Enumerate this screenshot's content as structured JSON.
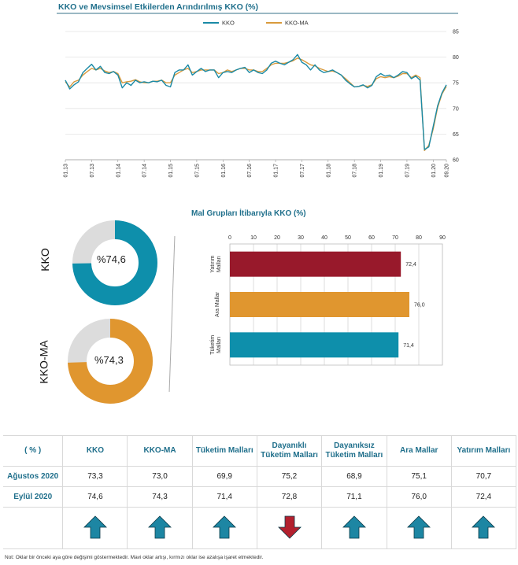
{
  "line_chart_title": "KKO ve Mevsimsel Etkilerden Arındırılmış KKO (%)",
  "bar_chart_title": "Mal Grupları İtibarıyla KKO (%)",
  "donuts": [
    {
      "label": "KKO",
      "value_text": "%74,6",
      "value": 74.6,
      "color": "#0e8fab"
    },
    {
      "label": "KKO-MA",
      "value_text": "%74,3",
      "value": 74.3,
      "color": "#e0962f"
    }
  ],
  "chart_data": [
    {
      "type": "line",
      "title": "KKO ve Mevsimsel Etkilerden Arındırılmış KKO (%)",
      "x_tick_labels": [
        "01.13",
        "07.13",
        "01.14",
        "07.14",
        "01.15",
        "07.15",
        "01.16",
        "07.16",
        "01.17",
        "07.17",
        "01.18",
        "07.18",
        "01.19",
        "07.19",
        "01.20",
        "09.20"
      ],
      "ylim": [
        60,
        85
      ],
      "yticks": [
        60,
        65,
        70,
        75,
        80,
        85
      ],
      "legend_position": "top-center",
      "series": [
        {
          "name": "KKO",
          "color": "#1a8aa6",
          "values": [
            75.5,
            73.8,
            74.6,
            75.2,
            77.0,
            77.8,
            78.6,
            77.5,
            78.2,
            77.0,
            76.8,
            77.2,
            76.5,
            74.0,
            75.0,
            74.5,
            75.5,
            75.0,
            75.2,
            75.0,
            75.3,
            75.2,
            75.5,
            74.5,
            74.2,
            77.0,
            77.5,
            77.5,
            78.5,
            76.5,
            77.2,
            77.8,
            77.2,
            77.5,
            77.5,
            76.0,
            77.0,
            77.2,
            77.0,
            77.5,
            77.8,
            78.0,
            77.0,
            77.5,
            77.0,
            76.8,
            77.5,
            78.8,
            79.2,
            78.8,
            78.5,
            79.0,
            79.5,
            80.5,
            79.0,
            78.5,
            77.5,
            78.5,
            77.5,
            77.0,
            77.2,
            77.5,
            77.0,
            76.5,
            75.5,
            74.8,
            74.2,
            74.3,
            74.6,
            74.0,
            74.5,
            76.2,
            76.8,
            76.3,
            76.5,
            76.0,
            76.5,
            77.2,
            77.0,
            75.8,
            76.3,
            75.5,
            62.0,
            62.5,
            66.5,
            70.5,
            73.0,
            74.6
          ]
        },
        {
          "name": "KKO-MA",
          "color": "#d99a3c",
          "values": [
            75.2,
            74.2,
            75.2,
            75.5,
            76.5,
            77.2,
            77.8,
            77.5,
            77.8,
            77.3,
            77.0,
            77.2,
            76.8,
            75.0,
            75.2,
            75.3,
            75.6,
            75.2,
            75.0,
            75.0,
            75.3,
            75.3,
            75.5,
            75.0,
            75.0,
            76.5,
            77.0,
            77.5,
            77.8,
            77.0,
            77.2,
            77.5,
            77.5,
            77.5,
            77.5,
            76.8,
            77.0,
            77.5,
            77.2,
            77.5,
            77.8,
            77.8,
            77.5,
            77.5,
            77.2,
            77.2,
            77.8,
            78.5,
            78.8,
            78.8,
            78.8,
            79.0,
            79.3,
            79.8,
            79.5,
            79.0,
            78.5,
            78.3,
            77.8,
            77.5,
            77.2,
            77.3,
            77.0,
            76.5,
            75.8,
            75.0,
            74.2,
            74.3,
            74.5,
            74.3,
            74.6,
            75.8,
            76.2,
            76.0,
            76.2,
            76.0,
            76.3,
            76.8,
            76.8,
            76.0,
            76.5,
            76.0,
            61.8,
            62.8,
            66.0,
            70.2,
            72.8,
            74.3
          ]
        }
      ]
    },
    {
      "type": "bar",
      "orientation": "horizontal",
      "title": "Mal Grupları İtibarıyla KKO (%)",
      "categories": [
        "Yatırım Malları",
        "Ara Mallar",
        "Tüketim Malları"
      ],
      "values": [
        72.4,
        76.0,
        71.4
      ],
      "value_labels": [
        "72,4",
        "76,0",
        "71,4"
      ],
      "colors": [
        "#98192b",
        "#e0962f",
        "#0e8fab"
      ],
      "xlim": [
        0,
        90
      ],
      "xticks": [
        0,
        10,
        20,
        30,
        40,
        50,
        60,
        70,
        80,
        90
      ]
    }
  ],
  "table": {
    "header": [
      "( % )",
      "KKO",
      "KKO-MA",
      "Tüketim Malları",
      "Dayanıklı Tüketim Malları",
      "Dayanıksız Tüketim Malları",
      "Ara Mallar",
      "Yatırım Malları"
    ],
    "rows": [
      {
        "label": "Ağustos 2020",
        "values": [
          "73,3",
          "73,0",
          "69,9",
          "75,2",
          "68,9",
          "75,1",
          "70,7"
        ]
      },
      {
        "label": "Eylül 2020",
        "values": [
          "74,6",
          "74,3",
          "71,4",
          "72,8",
          "71,1",
          "76,0",
          "72,4"
        ]
      }
    ],
    "arrows": [
      "up",
      "up",
      "up",
      "down",
      "up",
      "up",
      "up"
    ],
    "arrow_colors": {
      "up": "#1d86a3",
      "down": "#b3202e"
    }
  },
  "note": "Not: Oklar bir önceki aya göre değişimi göstermektedir. Mavi oklar artışı, kırmızı oklar ise azalışa işaret etmektedir."
}
